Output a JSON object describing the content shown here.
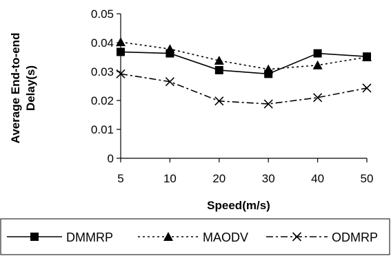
{
  "chart_data": {
    "type": "line",
    "title": "",
    "xlabel": "Speed(m/s)",
    "ylabel": [
      "Average End-to-end",
      "Delay(s)"
    ],
    "categories": [
      "5",
      "10",
      "20",
      "30",
      "40",
      "50"
    ],
    "ylim": [
      0,
      0.05
    ],
    "yticks": [
      "0.05",
      "0.04",
      "0.03",
      "0.02",
      "0.01",
      "0"
    ],
    "grid": false,
    "legend_position": "bottom",
    "series": [
      {
        "name": "DMMRP",
        "values": [
          0.0368,
          0.0363,
          0.0305,
          0.0292,
          0.0363,
          0.0352
        ],
        "marker": "square",
        "dash": "solid"
      },
      {
        "name": "MAODV",
        "values": [
          0.0402,
          0.0378,
          0.0338,
          0.0308,
          0.0322,
          0.035
        ],
        "marker": "triangle",
        "dash": "dotted"
      },
      {
        "name": "ODMRP",
        "values": [
          0.0292,
          0.0265,
          0.0198,
          0.0188,
          0.021,
          0.0243
        ],
        "marker": "x",
        "dash": "dash-dot"
      }
    ]
  }
}
